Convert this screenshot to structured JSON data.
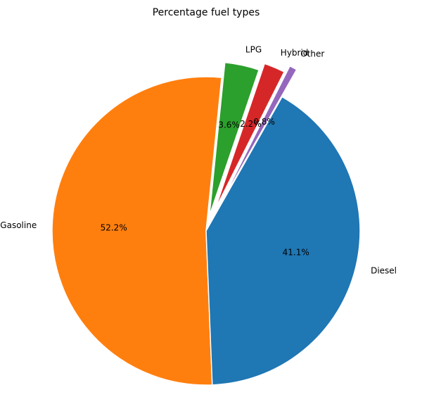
{
  "chart_data": {
    "type": "pie",
    "title": "Percentage fuel types",
    "categories": [
      "Gasoline",
      "Diesel",
      "Other",
      "Hybrid",
      "LPG"
    ],
    "values": [
      52.2,
      41.1,
      0.8,
      2.2,
      3.6
    ],
    "percent_labels": [
      "52.2%",
      "41.1%",
      "0.8%",
      "2.2%",
      "3.6%"
    ],
    "colors": [
      "#ff7f0e",
      "#1f77b4",
      "#9467bd",
      "#d62728",
      "#2ca02c"
    ],
    "explode": [
      0,
      0,
      0.2,
      0.15,
      0.1
    ],
    "start_angle_deg": 84.2,
    "legend": "none"
  }
}
